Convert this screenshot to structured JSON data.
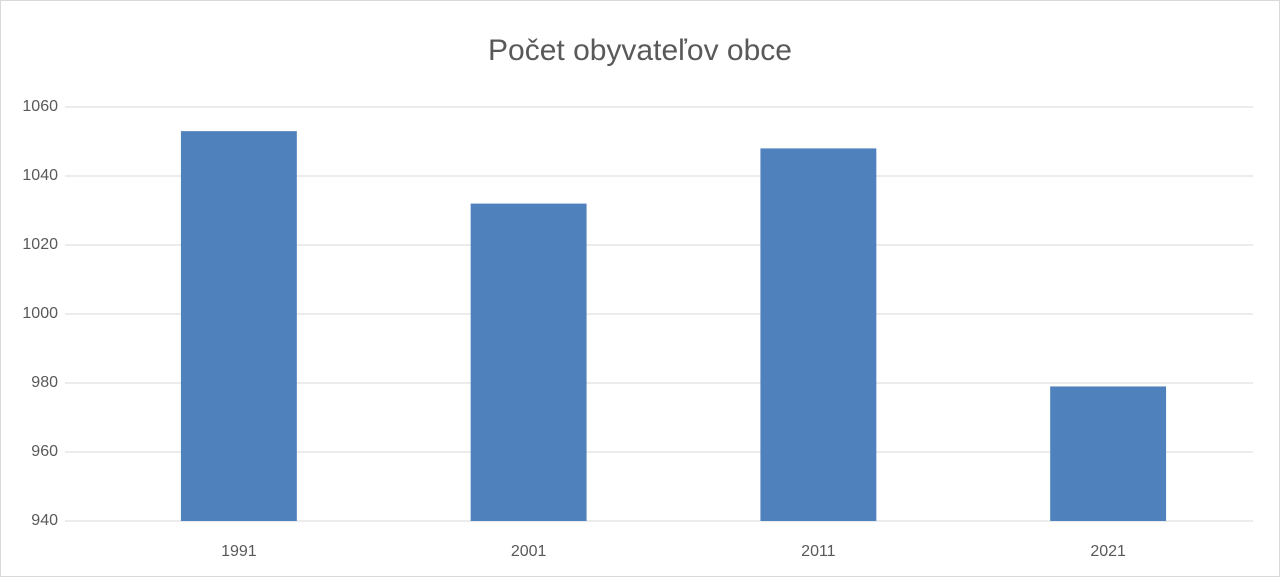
{
  "chart_data": {
    "type": "bar",
    "title": "Počet obyvateľov obce",
    "categories": [
      "1991",
      "2001",
      "2011",
      "2021"
    ],
    "values": [
      1053,
      1032,
      1048,
      979
    ],
    "color": "#4f81bd",
    "ylim": [
      940,
      1060
    ],
    "yticks": [
      940,
      960,
      980,
      1000,
      1020,
      1040,
      1060
    ],
    "grid": true
  }
}
